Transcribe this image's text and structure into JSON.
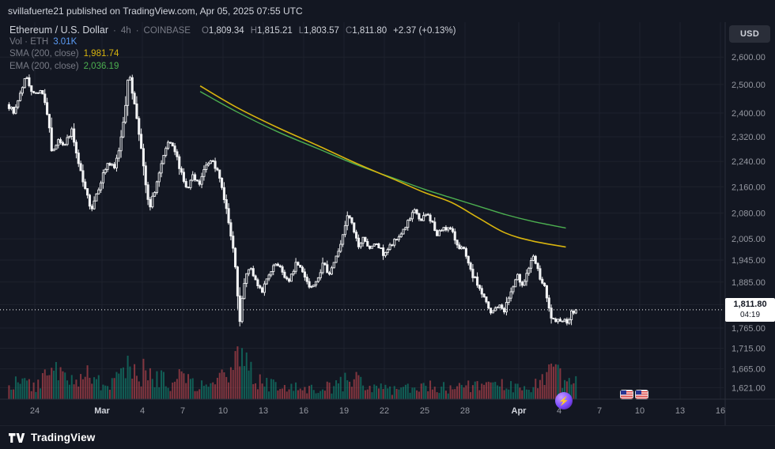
{
  "banner": {
    "text": "svillafuerte21 published on TradingView.com, Apr 05, 2025 07:55 UTC"
  },
  "legend": {
    "symbol": "Ethereum / U.S. Dollar",
    "separator": "·",
    "interval": "4h",
    "exchange": "COINBASE",
    "ohlc": {
      "o_label": "O",
      "o": "1,809.34",
      "h_label": "H",
      "h": "1,815.21",
      "l_label": "L",
      "l": "1,803.57",
      "c_label": "C",
      "c": "1,811.80",
      "change": "+2.37 (+0.13%)"
    },
    "volume": {
      "label": "Vol · ETH",
      "value": "3.01K"
    },
    "sma": {
      "label": "SMA (200, close)",
      "value": "1,981.74"
    },
    "ema": {
      "label": "EMA (200, close)",
      "value": "2,036.19"
    }
  },
  "price_scale": {
    "currency_button": "USD",
    "last_price": "1,811.80",
    "countdown": "04:19"
  },
  "footer": {
    "logo_text": "TradingView"
  },
  "stickers": {
    "reaction": "⚡"
  },
  "colors": {
    "bg": "#131722",
    "grid": "#1e222d",
    "separator": "#2a2e39",
    "axis_text": "#9598a1",
    "text_primary": "#d1d4dc",
    "text_muted": "#787b86",
    "candle": "#f2f3f5",
    "vol_up": "rgba(16,154,129,0.55)",
    "vol_down": "rgba(242,84,91,0.5)",
    "sma": "#d8b40e",
    "ema": "#4caf50",
    "vol_value": "#5b9cf6",
    "last_price_line": "#ffffff",
    "label_bg": "#ffffff",
    "label_text": "#131722",
    "button_bg": "#2a2e39"
  },
  "chart_data": {
    "type": "candlestick",
    "title": "Ethereum / U.S. Dollar · 4h · COINBASE",
    "last_close": 1811.8,
    "last_volume": "3.01K",
    "candles_per_day": 6,
    "y_axis": {
      "scale": "log",
      "ticks": [
        2600,
        2500,
        2400,
        2320,
        2240,
        2160,
        2080,
        2005,
        1945,
        1885,
        1825,
        1765,
        1715,
        1665,
        1621
      ]
    },
    "x_axis": {
      "day0_date": "Feb 22",
      "last_data_day": 42.33,
      "ticks": [
        {
          "day": 2,
          "label": "24"
        },
        {
          "day": 7,
          "label": "Mar"
        },
        {
          "day": 10,
          "label": "4"
        },
        {
          "day": 13,
          "label": "7"
        },
        {
          "day": 16,
          "label": "10"
        },
        {
          "day": 19,
          "label": "13"
        },
        {
          "day": 22,
          "label": "16"
        },
        {
          "day": 25,
          "label": "19"
        },
        {
          "day": 28,
          "label": "22"
        },
        {
          "day": 31,
          "label": "25"
        },
        {
          "day": 34,
          "label": "28"
        },
        {
          "day": 38,
          "label": "Apr"
        },
        {
          "day": 41,
          "label": "4"
        },
        {
          "day": 44,
          "label": "7"
        },
        {
          "day": 47,
          "label": "10"
        },
        {
          "day": 50,
          "label": "13"
        },
        {
          "day": 53,
          "label": "16"
        }
      ]
    },
    "price_path": [
      [
        0,
        2440
      ],
      [
        0.5,
        2395
      ],
      [
        1,
        2470
      ],
      [
        1.4,
        2530
      ],
      [
        2,
        2465
      ],
      [
        2.6,
        2485
      ],
      [
        3,
        2400
      ],
      [
        3.4,
        2255
      ],
      [
        3.8,
        2320
      ],
      [
        4.3,
        2290
      ],
      [
        4.8,
        2345
      ],
      [
        5.3,
        2235
      ],
      [
        5.8,
        2150
      ],
      [
        6.3,
        2095
      ],
      [
        7,
        2180
      ],
      [
        7.5,
        2235
      ],
      [
        8,
        2215
      ],
      [
        8.4,
        2290
      ],
      [
        8.8,
        2420
      ],
      [
        9.1,
        2550
      ],
      [
        9.4,
        2455
      ],
      [
        9.8,
        2350
      ],
      [
        10.2,
        2205
      ],
      [
        10.6,
        2085
      ],
      [
        11,
        2150
      ],
      [
        11.5,
        2225
      ],
      [
        12,
        2300
      ],
      [
        12.5,
        2270
      ],
      [
        13,
        2205
      ],
      [
        13.4,
        2145
      ],
      [
        13.8,
        2190
      ],
      [
        14.3,
        2165
      ],
      [
        14.8,
        2225
      ],
      [
        15.3,
        2255
      ],
      [
        15.8,
        2185
      ],
      [
        16.2,
        2125
      ],
      [
        16.6,
        2025
      ],
      [
        17,
        1930
      ],
      [
        17.3,
        1768
      ],
      [
        17.6,
        1870
      ],
      [
        18,
        1925
      ],
      [
        18.5,
        1890
      ],
      [
        19,
        1862
      ],
      [
        19.5,
        1900
      ],
      [
        20,
        1932
      ],
      [
        20.5,
        1912
      ],
      [
        21,
        1882
      ],
      [
        21.5,
        1938
      ],
      [
        22,
        1918
      ],
      [
        22.5,
        1872
      ],
      [
        23,
        1892
      ],
      [
        23.5,
        1930
      ],
      [
        24,
        1912
      ],
      [
        24.5,
        1952
      ],
      [
        25,
        2012
      ],
      [
        25.4,
        2078
      ],
      [
        25.8,
        2030
      ],
      [
        26.2,
        1982
      ],
      [
        26.6,
        2012
      ],
      [
        27,
        1972
      ],
      [
        27.5,
        1992
      ],
      [
        28,
        1962
      ],
      [
        28.5,
        1982
      ],
      [
        29,
        2002
      ],
      [
        29.5,
        2032
      ],
      [
        30,
        2062
      ],
      [
        30.4,
        2088
      ],
      [
        30.8,
        2052
      ],
      [
        31.2,
        2078
      ],
      [
        31.6,
        2058
      ],
      [
        32,
        2012
      ],
      [
        32.5,
        2042
      ],
      [
        33,
        2030
      ],
      [
        33.5,
        1992
      ],
      [
        34,
        1970
      ],
      [
        34.5,
        1912
      ],
      [
        35,
        1880
      ],
      [
        35.5,
        1842
      ],
      [
        36,
        1800
      ],
      [
        36.5,
        1822
      ],
      [
        37,
        1812
      ],
      [
        37.5,
        1858
      ],
      [
        38,
        1898
      ],
      [
        38.4,
        1880
      ],
      [
        38.8,
        1922
      ],
      [
        39.2,
        1952
      ],
      [
        39.6,
        1902
      ],
      [
        40,
        1868
      ],
      [
        40.4,
        1800
      ],
      [
        40.8,
        1772
      ],
      [
        41.2,
        1792
      ],
      [
        41.6,
        1780
      ],
      [
        42,
        1802
      ],
      [
        42.33,
        1811.8
      ]
    ],
    "sma_points": [
      [
        14.3,
        2495
      ],
      [
        17,
        2420
      ],
      [
        20,
        2352
      ],
      [
        23,
        2292
      ],
      [
        26,
        2232
      ],
      [
        29,
        2178
      ],
      [
        31,
        2142
      ],
      [
        33,
        2112
      ],
      [
        35,
        2066
      ],
      [
        37,
        2022
      ],
      [
        39,
        1999
      ],
      [
        41.5,
        1981.74
      ]
    ],
    "ema_points": [
      [
        14.3,
        2475
      ],
      [
        17,
        2405
      ],
      [
        20,
        2338
      ],
      [
        23,
        2282
      ],
      [
        26,
        2228
      ],
      [
        29,
        2182
      ],
      [
        31,
        2152
      ],
      [
        33,
        2126
      ],
      [
        35,
        2101
      ],
      [
        37,
        2076
      ],
      [
        39,
        2056
      ],
      [
        41.5,
        2036.19
      ]
    ],
    "volume_profile": [
      [
        0,
        1.4
      ],
      [
        2,
        1.0
      ],
      [
        3.3,
        2.0
      ],
      [
        4.5,
        1.5
      ],
      [
        6,
        1.7
      ],
      [
        7.5,
        1.2
      ],
      [
        9,
        2.4
      ],
      [
        10.5,
        1.8
      ],
      [
        12,
        1.3
      ],
      [
        13,
        1.6
      ],
      [
        14.5,
        1.0
      ],
      [
        16,
        1.6
      ],
      [
        17.2,
        3.1
      ],
      [
        17.6,
        2.4
      ],
      [
        18.5,
        1.3
      ],
      [
        20,
        0.9
      ],
      [
        22,
        0.8
      ],
      [
        24,
        0.9
      ],
      [
        25.4,
        1.5
      ],
      [
        27,
        0.9
      ],
      [
        28.5,
        0.7
      ],
      [
        30,
        1.0
      ],
      [
        31.5,
        0.9
      ],
      [
        33,
        0.8
      ],
      [
        34.5,
        1.0
      ],
      [
        36,
        1.2
      ],
      [
        37.5,
        0.9
      ],
      [
        38.5,
        0.8
      ],
      [
        39.5,
        1.4
      ],
      [
        40.5,
        1.9
      ],
      [
        41.5,
        1.3
      ],
      [
        42.3,
        1.1
      ]
    ]
  }
}
